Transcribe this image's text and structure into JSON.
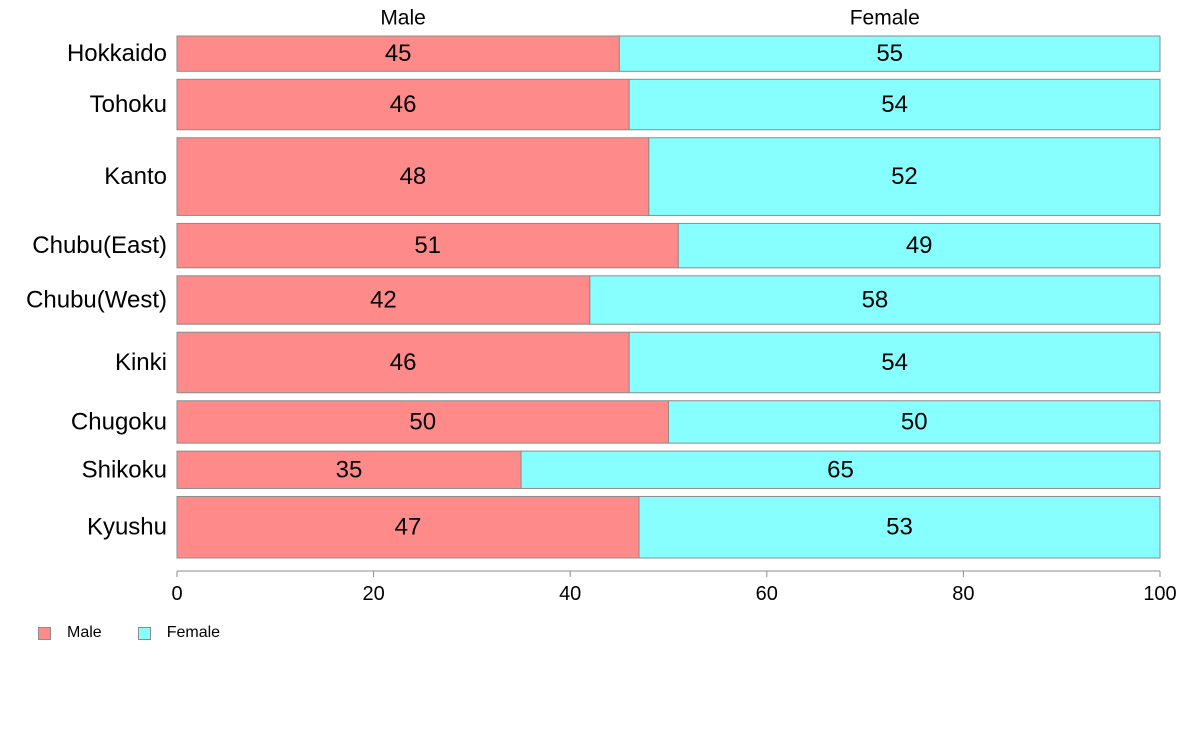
{
  "chart_data": {
    "type": "bar",
    "orientation": "horizontal",
    "stacked": true,
    "categories": [
      "Hokkaido",
      "Tohoku",
      "Kanto",
      "Chubu(East)",
      "Chubu(West)",
      "Kinki",
      "Chugoku",
      "Shikoku",
      "Kyushu"
    ],
    "category_weights": [
      35,
      50,
      77,
      44,
      48,
      60,
      42,
      37,
      61
    ],
    "series": [
      {
        "name": "Male",
        "color": "#ff8a8a",
        "values": [
          45,
          46,
          48,
          51,
          42,
          46,
          50,
          35,
          47
        ],
        "value_labels": [
          "45",
          "46",
          "48",
          "51",
          "42",
          "46",
          "50",
          "35",
          "47"
        ]
      },
      {
        "name": "Female",
        "color": "#88ffff",
        "values": [
          55,
          54,
          52,
          49,
          58,
          54,
          50,
          65,
          53
        ],
        "value_labels": [
          "55",
          "54",
          "52",
          "49",
          "58",
          "54",
          "50",
          "65",
          "53"
        ]
      }
    ],
    "top_labels": [
      {
        "text": "Male",
        "at": 23
      },
      {
        "text": "Female",
        "at": 72
      }
    ],
    "xlim": [
      0,
      100
    ],
    "xticks": [
      0,
      20,
      40,
      60,
      80,
      100
    ],
    "xtick_labels": [
      "0",
      "20",
      "40",
      "60",
      "80",
      "100"
    ],
    "bar_border_color": "#8c8c8c",
    "grid": false,
    "legend_position": "bottom-left",
    "title": "",
    "xlabel": "",
    "ylabel": ""
  }
}
